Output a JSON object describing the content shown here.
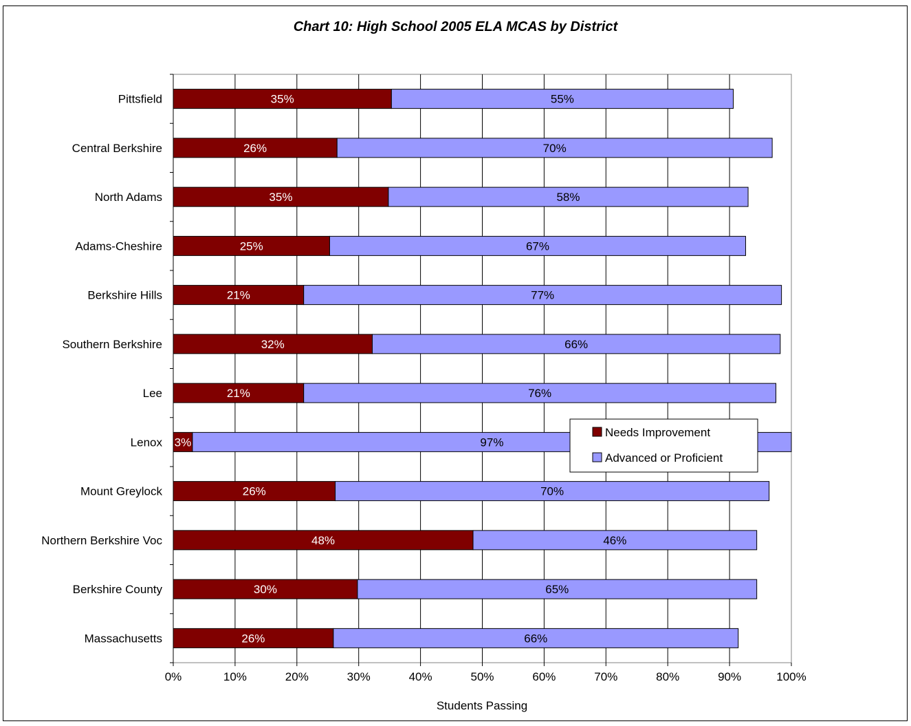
{
  "chart_data": {
    "type": "bar",
    "orientation": "horizontal",
    "stacked": true,
    "title": "Chart 10: High School 2005 ELA MCAS by District",
    "xlabel": "Students Passing",
    "ylabel": "",
    "xlim": [
      0,
      100
    ],
    "xticks": [
      "0%",
      "10%",
      "20%",
      "30%",
      "40%",
      "50%",
      "60%",
      "70%",
      "80%",
      "90%",
      "100%"
    ],
    "grid": true,
    "legend_position": "right-middle",
    "categories": [
      "Pittsfield",
      "Central Berkshire",
      "North Adams",
      "Adams-Cheshire",
      "Berkshire Hills",
      "Southern Berkshire",
      "Lee",
      "Lenox",
      "Mount Greylock",
      "Northern Berkshire Voc",
      "Berkshire County",
      "Massachusetts"
    ],
    "series": [
      {
        "name": "Needs Improvement",
        "color": "#800000",
        "values": [
          35.3,
          26.5,
          34.8,
          25.3,
          21.1,
          32.2,
          21.1,
          3.1,
          26.2,
          48.5,
          29.8,
          25.9
        ],
        "labels": [
          "35%",
          "26%",
          "35%",
          "25%",
          "21%",
          "32%",
          "21%",
          "3%",
          "26%",
          "48%",
          "30%",
          "26%"
        ]
      },
      {
        "name": "Advanced or Proficient",
        "color": "#9999ff",
        "values": [
          55.3,
          70.4,
          58.2,
          67.3,
          77.3,
          66.0,
          76.4,
          96.9,
          70.2,
          45.9,
          64.6,
          65.5
        ],
        "labels": [
          "55%",
          "70%",
          "58%",
          "67%",
          "77%",
          "66%",
          "76%",
          "97%",
          "70%",
          "46%",
          "65%",
          "66%"
        ]
      }
    ]
  }
}
